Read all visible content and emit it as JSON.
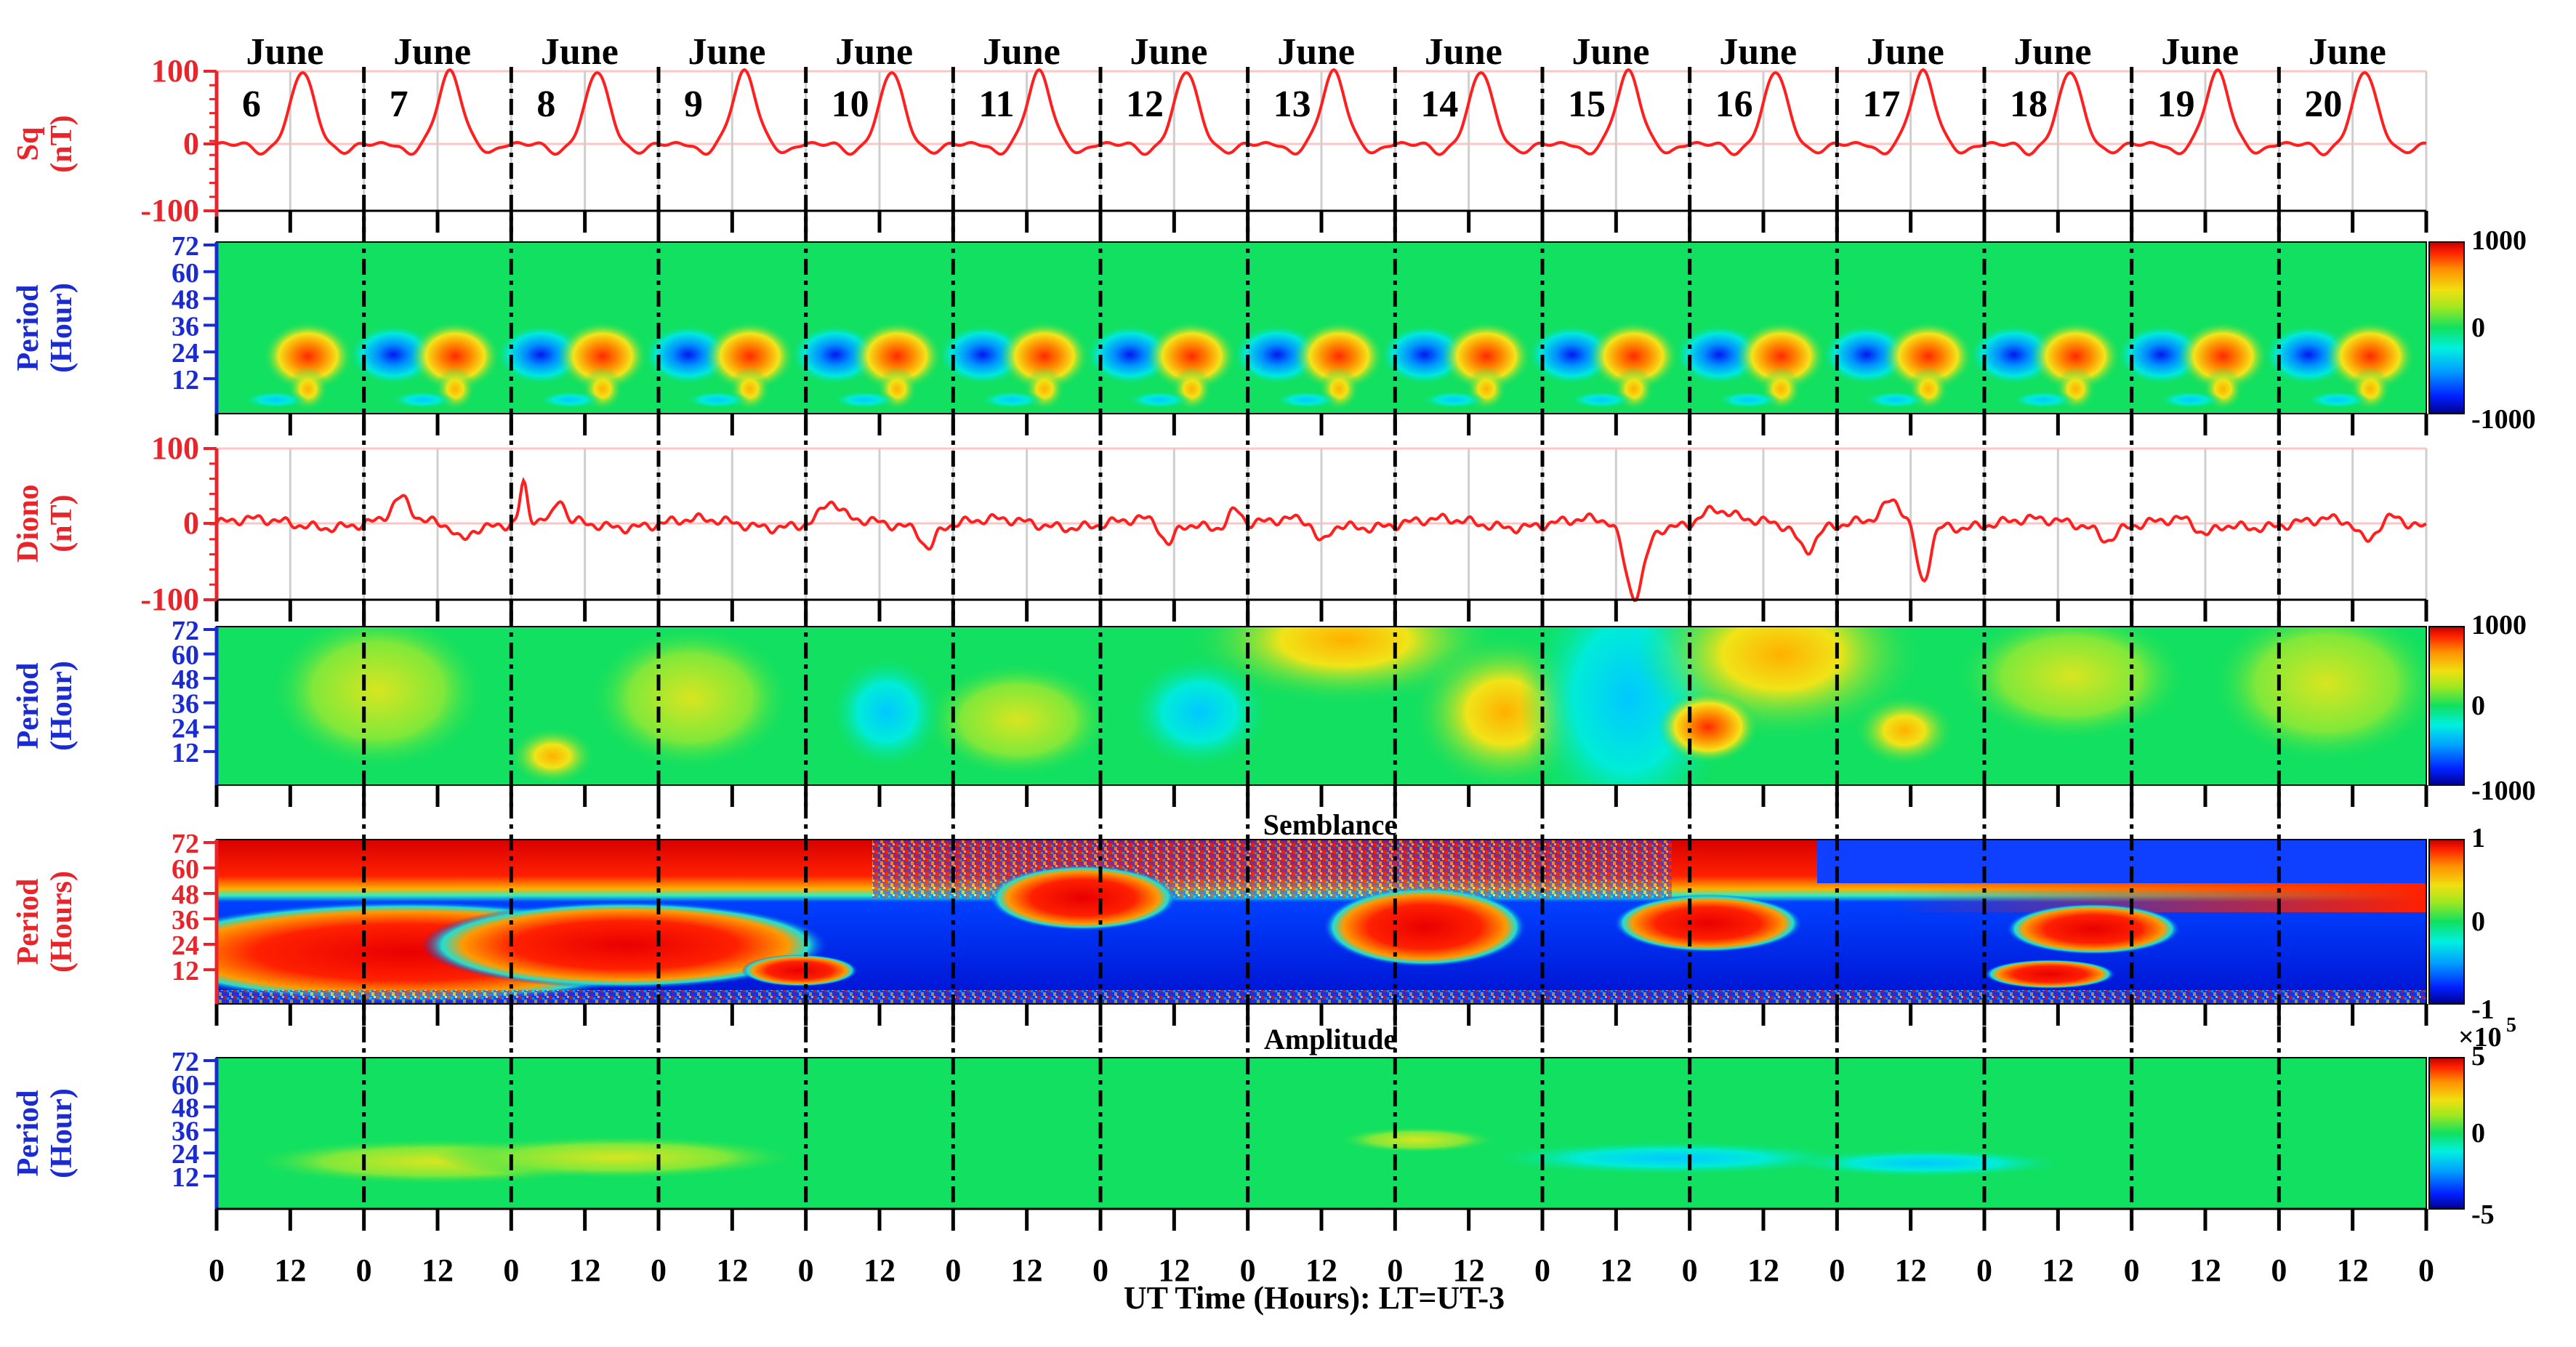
{
  "days": [
    {
      "month": "June",
      "day": "6"
    },
    {
      "month": "June",
      "day": "7"
    },
    {
      "month": "June",
      "day": "8"
    },
    {
      "month": "June",
      "day": "9"
    },
    {
      "month": "June",
      "day": "10"
    },
    {
      "month": "June",
      "day": "11"
    },
    {
      "month": "June",
      "day": "12"
    },
    {
      "month": "June",
      "day": "13"
    },
    {
      "month": "June",
      "day": "14"
    },
    {
      "month": "June",
      "day": "15"
    },
    {
      "month": "June",
      "day": "16"
    },
    {
      "month": "June",
      "day": "17"
    },
    {
      "month": "June",
      "day": "18"
    },
    {
      "month": "June",
      "day": "19"
    },
    {
      "month": "June",
      "day": "20"
    }
  ],
  "x_axis": {
    "title": "UT Time (Hours): LT=UT-3",
    "tick_labels": [
      "0",
      "12",
      "0",
      "12",
      "0",
      "12",
      "0",
      "12",
      "0",
      "12",
      "0",
      "12",
      "0",
      "12",
      "0",
      "12",
      "0",
      "12",
      "0",
      "12",
      "0",
      "12",
      "0",
      "12",
      "0",
      "12",
      "0",
      "12",
      "0",
      "12",
      "0"
    ]
  },
  "colors": {
    "red_label": "#e8252b",
    "blue_label": "#1a2bd1",
    "line": "#ff1f1f",
    "ref_line": "#ffc4c4",
    "grid": "#cfcfcf"
  },
  "colormap": [
    "#00008f",
    "#0020ff",
    "#00a0ff",
    "#00f0e0",
    "#20e8a0",
    "#10e060",
    "#80e830",
    "#e8e010",
    "#ffa000",
    "#ff3000",
    "#c00000"
  ],
  "chart_data": [
    {
      "id": "sq",
      "type": "line",
      "ylabel_lines": [
        "Sq",
        "(nT)"
      ],
      "ylabel_color": "red",
      "yticks": [
        "100",
        "0",
        "-100"
      ],
      "ylim": [
        -100,
        100
      ],
      "x_unit": "UT hours",
      "xlim": [
        0,
        360
      ],
      "reference_line_y": 0,
      "daily_pattern": "quiet-day variation, peak about 100 nT near 14 UT each day, small negative dips near 7 and 20 UT",
      "daily_peak_nT": [
        100,
        100,
        100,
        100,
        100,
        100,
        100,
        100,
        100,
        100,
        100,
        100,
        100,
        100,
        100
      ]
    },
    {
      "id": "sq-wavelet",
      "type": "heatmap",
      "ylabel_lines": [
        "Period",
        "(Hour)"
      ],
      "ylabel_color": "blue",
      "yticks": [
        "72",
        "60",
        "48",
        "36",
        "24",
        "12"
      ],
      "ylim": [
        0,
        72
      ],
      "colorbar": {
        "ticks": [
          "1000",
          "0",
          "-1000"
        ],
        "range": [
          -1000,
          1000
        ]
      },
      "pattern": "alternating blue (minimum) and red/orange (maximum) cells around 24 h period, one pair per day; green background elsewhere"
    },
    {
      "id": "diono",
      "type": "line",
      "ylabel_lines": [
        "Diono",
        "(nT)"
      ],
      "ylabel_color": "red",
      "yticks": [
        "100",
        "0",
        "-100"
      ],
      "ylim": [
        -100,
        100
      ],
      "x_unit": "UT hours",
      "xlim": [
        0,
        360
      ],
      "reference_line_y": 0,
      "notable_points": [
        {
          "x": 50,
          "y": 55
        },
        {
          "x": 231,
          "y": -98
        },
        {
          "x": 278,
          "y": -80
        }
      ]
    },
    {
      "id": "diono-wavelet",
      "type": "heatmap",
      "ylabel_lines": [
        "Period",
        "(Hour)"
      ],
      "ylabel_color": "blue",
      "yticks": [
        "72",
        "60",
        "48",
        "36",
        "24",
        "12"
      ],
      "ylim": [
        0,
        72
      ],
      "colorbar": {
        "ticks": [
          "1000",
          "0",
          "-1000"
        ],
        "range": [
          -1000,
          1000
        ]
      },
      "pattern": "mostly green/yellow, strong yellow-orange around days 14 and 16, cyan depression around day 15"
    },
    {
      "id": "semblance",
      "type": "heatmap",
      "title": "Semblance",
      "ylabel_lines": [
        "Period",
        "(Hours)"
      ],
      "ylabel_color": "red",
      "yticks": [
        "72",
        "60",
        "48",
        "36",
        "24",
        "12"
      ],
      "ylim": [
        0,
        72
      ],
      "colorbar": {
        "ticks": [
          "1",
          "0",
          "-1"
        ],
        "range": [
          -1,
          1
        ]
      },
      "pattern": "red band near 60-72 h, deep blue band 40-50 h, red lobes near 24-36 h on days 6-8, 11, 14, 16, 18, 20"
    },
    {
      "id": "amplitude",
      "type": "heatmap",
      "title": "Amplitude",
      "ylabel_lines": [
        "Period",
        "(Hour)"
      ],
      "ylabel_color": "blue",
      "yticks": [
        "72",
        "60",
        "48",
        "36",
        "24",
        "12"
      ],
      "ylim": [
        0,
        72
      ],
      "colorbar": {
        "ticks": [
          "5",
          "0",
          "-5"
        ],
        "range": [
          -5,
          5
        ],
        "multiplier": "×10^5"
      },
      "pattern": "near-uniform green with faint yellow near 24 h on days 6-8 and faint cyan near 24 h on days 15-17"
    }
  ]
}
